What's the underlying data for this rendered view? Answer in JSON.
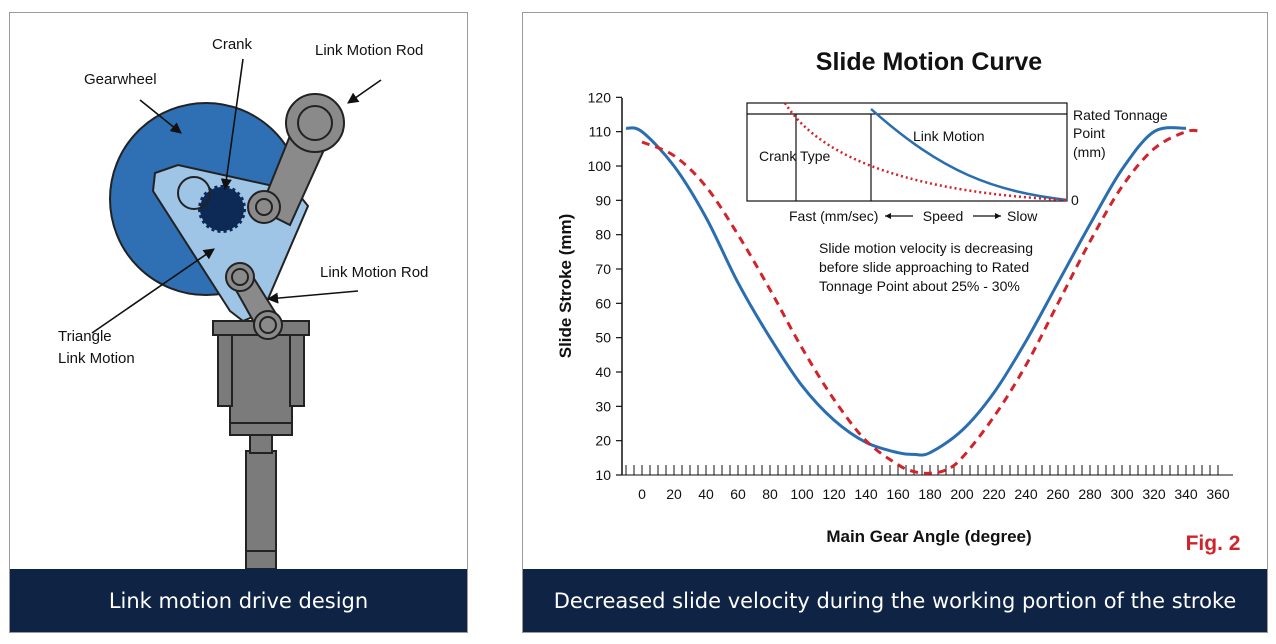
{
  "left": {
    "labels": {
      "crank": "Crank",
      "link_rod_top": "Link Motion Rod",
      "gearwheel": "Gearwheel",
      "link_rod_mid": "Link Motion Rod",
      "triangle_1": "Triangle",
      "triangle_2": "Link Motion"
    },
    "caption": "Link motion drive design"
  },
  "right": {
    "caption": "Decreased slide velocity during the working portion of the stroke",
    "fig": "Fig. 2",
    "inset": {
      "rated_1": "Rated Tonnage",
      "rated_2": "Point",
      "rated_3": "(mm)",
      "zero": "0",
      "link_motion": "Link Motion",
      "crank_type": "Crank Type",
      "fast": "Fast (mm/sec)",
      "speed": "Speed",
      "slow": "Slow"
    },
    "note": {
      "line1": "Slide motion velocity is decreasing",
      "line2": "before slide approaching to Rated",
      "line3": "Tonnage Point about 25% - 30%"
    }
  },
  "colors": {
    "navy": "#0f2344",
    "blue_curve": "#2a6db0",
    "red_curve": "#d1232a",
    "gear_blue": "#2f6fb4",
    "triangle_fill": "#9ec4e6",
    "crank_dark": "#0c2a55",
    "rod_gray": "#8a8a8a",
    "ram_gray": "#7b7b7b"
  },
  "chart_data": {
    "type": "line",
    "title": "Slide Motion Curve",
    "xlabel": "Main Gear Angle (degree)",
    "ylabel": "Slide Stroke (mm)",
    "xlim": [
      -10,
      360
    ],
    "ylim": [
      10,
      120
    ],
    "x_ticks": [
      0,
      20,
      40,
      60,
      80,
      100,
      120,
      140,
      160,
      180,
      200,
      220,
      240,
      260,
      280,
      300,
      320,
      340,
      360
    ],
    "y_ticks": [
      10,
      20,
      30,
      40,
      50,
      60,
      70,
      80,
      90,
      100,
      110,
      120
    ],
    "series": [
      {
        "name": "Link Motion",
        "style": "solid",
        "color": "#2a6db0",
        "x": [
          -10,
          0,
          20,
          40,
          60,
          80,
          100,
          120,
          140,
          160,
          170,
          180,
          200,
          220,
          240,
          260,
          280,
          300,
          320,
          340
        ],
        "y": [
          111,
          110,
          100,
          85,
          66,
          50,
          36,
          26,
          19.5,
          16.5,
          16,
          16.5,
          23,
          34,
          49,
          66,
          83,
          99,
          110,
          111
        ]
      },
      {
        "name": "Crank Type",
        "style": "dashed",
        "color": "#d1232a",
        "x": [
          0,
          20,
          40,
          60,
          80,
          100,
          120,
          140,
          160,
          170,
          180,
          190,
          200,
          220,
          240,
          260,
          280,
          300,
          320,
          340,
          350
        ],
        "y": [
          107,
          103,
          94,
          80,
          64,
          47,
          32,
          20,
          13,
          11,
          10.5,
          11.5,
          15,
          27,
          42,
          60,
          78,
          94,
          105,
          110,
          110
        ]
      }
    ],
    "inset": {
      "series": [
        "Link Motion",
        "Crank Type"
      ],
      "y_labels": [
        "Rated Tonnage Point (mm)",
        "0"
      ],
      "x_axis": [
        "Fast (mm/sec)",
        "Speed",
        "Slow"
      ]
    }
  }
}
